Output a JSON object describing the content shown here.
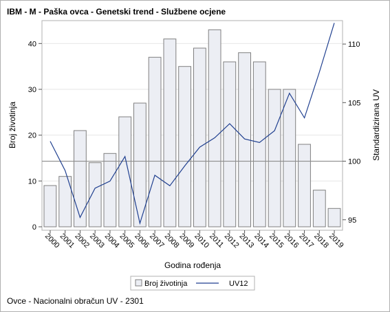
{
  "title": "IBM - M - Paška ovca - Genetski trend - Službene ocjene",
  "footnote": "Ovce - Nacionalni obračun UV - 2301",
  "chart_data": {
    "type": "bar",
    "xlabel": "Godina rođenja",
    "ylabel": "Broj životinja",
    "y2label": "Standardizirana UV",
    "categories": [
      "2000",
      "2001",
      "2002",
      "2003",
      "2004",
      "2005",
      "2006",
      "2007",
      "2008",
      "2009",
      "2010",
      "2011",
      "2012",
      "2013",
      "2014",
      "2015",
      "2016",
      "2017",
      "2018",
      "2019"
    ],
    "ylim": [
      0,
      45
    ],
    "yticks": [
      0,
      10,
      20,
      30,
      40
    ],
    "y2lim": [
      94.4,
      112
    ],
    "y2ticks": [
      95,
      100,
      105,
      110
    ],
    "reference_line_y2": 100,
    "series": [
      {
        "name": "Broj životinja",
        "type": "bar",
        "axis": "left",
        "color": "#eceef4",
        "stroke": "#7f7f7f",
        "values": [
          9,
          11,
          21,
          14,
          16,
          24,
          27,
          37,
          41,
          35,
          39,
          43,
          36,
          38,
          36,
          30,
          30,
          18,
          8,
          4
        ]
      },
      {
        "name": "UV12",
        "type": "line",
        "axis": "right",
        "color": "#1f3f8f",
        "values": [
          101.7,
          99.2,
          95.2,
          97.7,
          98.3,
          100.4,
          94.7,
          98.8,
          97.9,
          99.6,
          101.2,
          102.0,
          103.2,
          101.9,
          101.6,
          102.6,
          105.8,
          103.7,
          107.6,
          111.8
        ]
      }
    ],
    "legend_position": "bottom",
    "grid": true
  }
}
